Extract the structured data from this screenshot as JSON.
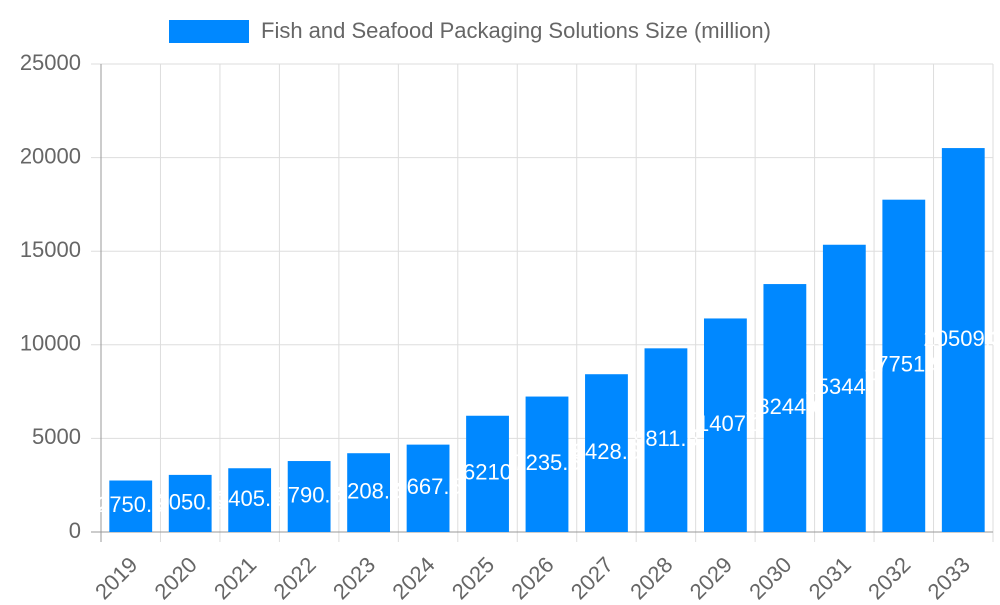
{
  "chart_data": {
    "type": "bar",
    "categories": [
      "2019",
      "2020",
      "2021",
      "2022",
      "2023",
      "2024",
      "2025",
      "2026",
      "2027",
      "2028",
      "2029",
      "2030",
      "2031",
      "2032",
      "2033"
    ],
    "series": [
      {
        "name": "Fish and Seafood Packaging Solutions Size (million)",
        "color": "#0088ff",
        "values": [
          2750.5,
          3050.5,
          3405.5,
          3790.5,
          4208.5,
          4667.5,
          6210,
          7235.5,
          8428.5,
          9811.5,
          11407.1,
          13244.6,
          15344.7,
          17751.9,
          20509.3
        ]
      }
    ],
    "ylim": [
      0,
      25000
    ],
    "yticks": [
      0,
      5000,
      10000,
      15000,
      20000,
      25000
    ],
    "grid": true,
    "legend": "top"
  }
}
